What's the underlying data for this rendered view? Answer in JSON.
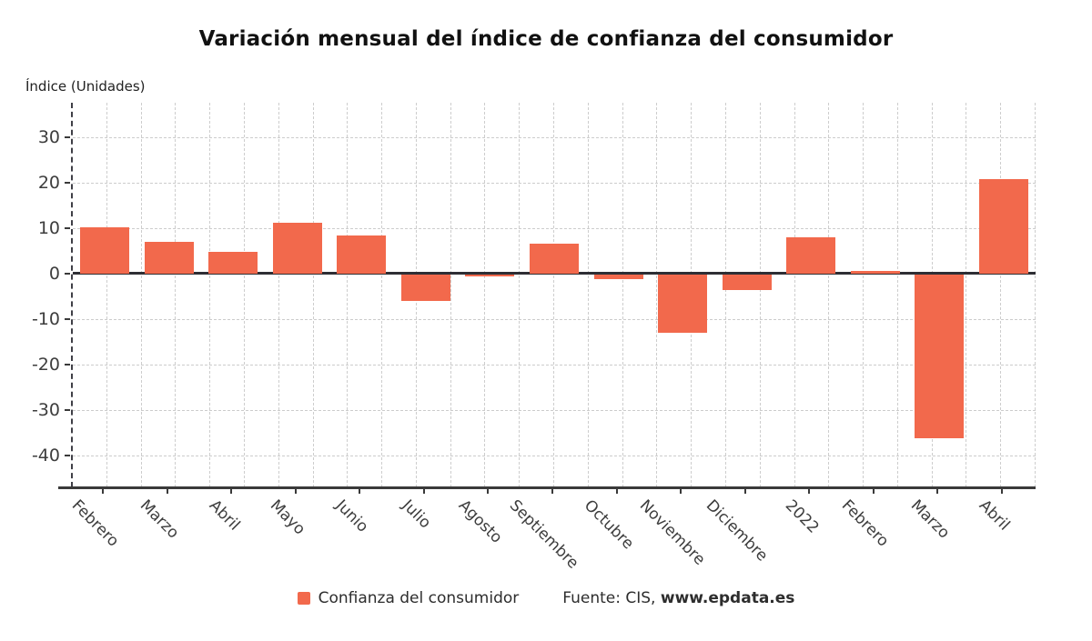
{
  "chart_data": {
    "type": "bar",
    "title": "Variación mensual del índice de confianza del consumidor",
    "ylabel": "Índice (Unidades)",
    "categories": [
      "Febrero",
      "Marzo",
      "Abril",
      "Mayo",
      "Junio",
      "Julio",
      "Agosto",
      "Septiembre",
      "Octubre",
      "Noviembre",
      "Diciembre",
      "2022",
      "Febrero",
      "Marzo",
      "Abril"
    ],
    "values": [
      10.1,
      7.0,
      4.7,
      11.1,
      8.4,
      -5.7,
      -0.4,
      6.6,
      -1.0,
      -12.8,
      -3.4,
      7.9,
      0.5,
      -36.0,
      20.7
    ],
    "series_name": "Confianza del consumidor",
    "yticks": [
      30,
      20,
      10,
      0,
      -10,
      -20,
      -30,
      -40
    ],
    "ylim": [
      -47,
      37.5
    ],
    "grid": true,
    "legend_position": "bottom",
    "bar_color": "#f2694c",
    "zero_line_color": "#2e2e34",
    "axis_color": "#3a3a3a",
    "grid_color": "#cccccc",
    "tick_text_color": "#3d3d3d"
  },
  "footer": {
    "legend_label": "Confianza del consumidor",
    "source_prefix": "Fuente: CIS, ",
    "source_link": "www.epdata.es"
  }
}
